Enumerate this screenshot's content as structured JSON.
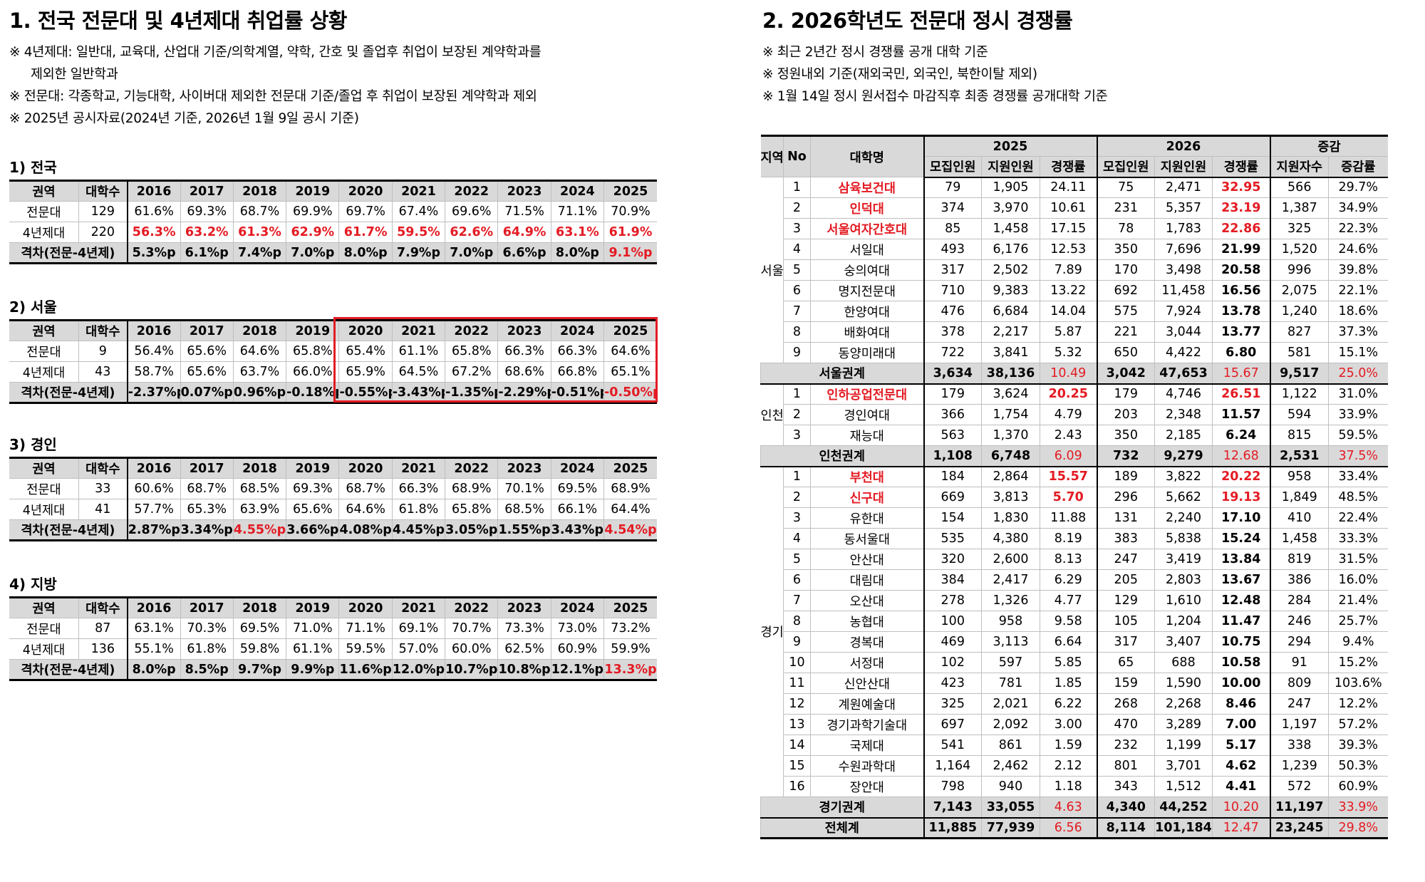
{
  "section1": {
    "title": "1. 전국 전문대 및 4년제대 취업률 상황",
    "notes": [
      "※ 4년제대: 일반대, 교육대, 산업대 기준/의학계열, 약학, 간호 및 졸업후 취업이 보장된 계약학과를",
      "제외한 일반학과",
      "※ 전문대: 각종학교, 기능대학, 사이버대 제외한 전문대 기준/졸업 후 취업이 보장된 계약학과 제외",
      "※ 2025년 공시자료(2024년 기준, 2026년 1월 9일 공시 기준)"
    ],
    "headers": [
      "권역",
      "대학수",
      "2016",
      "2017",
      "2018",
      "2019",
      "2020",
      "2021",
      "2022",
      "2023",
      "2024",
      "2025"
    ],
    "tables": [
      {
        "subtitle": "1) 전국",
        "rows": [
          {
            "label": "전문대",
            "count": "129",
            "values": [
              "61.6%",
              "69.3%",
              "68.7%",
              "69.9%",
              "69.7%",
              "67.4%",
              "69.6%",
              "71.5%",
              "71.1%",
              "70.9%"
            ]
          },
          {
            "label": "4년제대",
            "count": "220",
            "values": [
              "56.3%",
              "63.2%",
              "61.3%",
              "62.9%",
              "61.7%",
              "59.5%",
              "62.6%",
              "64.9%",
              "63.1%",
              "61.9%"
            ]
          }
        ],
        "gap": {
          "label": "격차(전문-4년제)",
          "values": [
            "5.3%p",
            "6.1%p",
            "7.4%p",
            "7.0%p",
            "8.0%p",
            "7.9%p",
            "7.0%p",
            "6.6%p",
            "8.0%p",
            "9.1%p"
          ]
        }
      },
      {
        "subtitle": "2) 서울",
        "rows": [
          {
            "label": "전문대",
            "count": "9",
            "values": [
              "56.4%",
              "65.6%",
              "64.6%",
              "65.8%",
              "65.4%",
              "61.1%",
              "65.8%",
              "66.3%",
              "66.3%",
              "64.6%"
            ]
          },
          {
            "label": "4년제대",
            "count": "43",
            "values": [
              "58.7%",
              "65.6%",
              "63.7%",
              "66.0%",
              "65.9%",
              "64.5%",
              "67.2%",
              "68.6%",
              "66.8%",
              "65.1%"
            ]
          }
        ],
        "gap": {
          "label": "격차(전문-4년제)",
          "values": [
            "-2.37%p",
            "0.07%p",
            "0.96%p",
            "-0.18%p",
            "-0.55%p",
            "-3.43%p",
            "-1.35%p",
            "-2.29%p",
            "-0.51%p",
            "-0.50%p"
          ]
        }
      },
      {
        "subtitle": "3) 경인",
        "rows": [
          {
            "label": "전문대",
            "count": "33",
            "values": [
              "60.6%",
              "68.7%",
              "68.5%",
              "69.3%",
              "68.7%",
              "66.3%",
              "68.9%",
              "70.1%",
              "69.5%",
              "68.9%"
            ]
          },
          {
            "label": "4년제대",
            "count": "41",
            "values": [
              "57.7%",
              "65.3%",
              "63.9%",
              "65.6%",
              "64.6%",
              "61.8%",
              "65.8%",
              "68.5%",
              "66.1%",
              "64.4%"
            ]
          }
        ],
        "gap": {
          "label": "격차(전문-4년제)",
          "values": [
            "2.87%p",
            "3.34%p",
            "4.55%p",
            "3.66%p",
            "4.08%p",
            "4.45%p",
            "3.05%p",
            "1.55%p",
            "3.43%p",
            "4.54%p"
          ]
        }
      },
      {
        "subtitle": "4) 지방",
        "rows": [
          {
            "label": "전문대",
            "count": "87",
            "values": [
              "63.1%",
              "70.3%",
              "69.5%",
              "71.0%",
              "71.1%",
              "69.1%",
              "70.7%",
              "73.3%",
              "73.0%",
              "73.2%"
            ]
          },
          {
            "label": "4년제대",
            "count": "136",
            "values": [
              "55.1%",
              "61.8%",
              "59.8%",
              "61.1%",
              "59.5%",
              "57.0%",
              "60.0%",
              "62.5%",
              "60.9%",
              "59.9%"
            ]
          }
        ],
        "gap": {
          "label": "격차(전문-4년제)",
          "values": [
            "8.0%p",
            "8.5%p",
            "9.7%p",
            "9.9%p",
            "11.6%p",
            "12.0%p",
            "10.7%p",
            "10.8%p",
            "12.1%p",
            "13.3%p"
          ]
        }
      }
    ]
  },
  "section2": {
    "title": "2. 2026학년도 전문대 정시 경쟁률",
    "notes": [
      "※ 최근 2년간 정시 경쟁률 공개 대학 기준",
      "※ 정원내외 기준(재외국민, 외국인, 북한이탈 제외)",
      "※ 1월 14일 정시 원서접수 마감직후 최종 경쟁률 공개대학 기준"
    ],
    "header": {
      "region": "지역",
      "no": "No",
      "name": "대학명",
      "y2025": "2025",
      "y2026": "2026",
      "change": "증감",
      "sub": [
        "모집인원",
        "지원인원",
        "경쟁률",
        "모집인원",
        "지원인원",
        "경쟁률",
        "지원자수",
        "증감률"
      ]
    },
    "regions": [
      {
        "name": "서울",
        "rows": [
          {
            "no": "1",
            "name": "삼육보건대",
            "v": [
              "79",
              "1,905",
              "24.11",
              "75",
              "2,471",
              "32.95",
              "566",
              "29.7%"
            ],
            "highlight": true
          },
          {
            "no": "2",
            "name": "인덕대",
            "v": [
              "374",
              "3,970",
              "10.61",
              "231",
              "5,357",
              "23.19",
              "1,387",
              "34.9%"
            ],
            "highlight": true
          },
          {
            "no": "3",
            "name": "서울여자간호대",
            "v": [
              "85",
              "1,458",
              "17.15",
              "78",
              "1,783",
              "22.86",
              "325",
              "22.3%"
            ],
            "highlight": true
          },
          {
            "no": "4",
            "name": "서일대",
            "v": [
              "493",
              "6,176",
              "12.53",
              "350",
              "7,696",
              "21.99",
              "1,520",
              "24.6%"
            ]
          },
          {
            "no": "5",
            "name": "숭의여대",
            "v": [
              "317",
              "2,502",
              "7.89",
              "170",
              "3,498",
              "20.58",
              "996",
              "39.8%"
            ]
          },
          {
            "no": "6",
            "name": "명지전문대",
            "v": [
              "710",
              "9,383",
              "13.22",
              "692",
              "11,458",
              "16.56",
              "2,075",
              "22.1%"
            ]
          },
          {
            "no": "7",
            "name": "한양여대",
            "v": [
              "476",
              "6,684",
              "14.04",
              "575",
              "7,924",
              "13.78",
              "1,240",
              "18.6%"
            ]
          },
          {
            "no": "8",
            "name": "배화여대",
            "v": [
              "378",
              "2,217",
              "5.87",
              "221",
              "3,044",
              "13.77",
              "827",
              "37.3%"
            ]
          },
          {
            "no": "9",
            "name": "동양미래대",
            "v": [
              "722",
              "3,841",
              "5.32",
              "650",
              "4,422",
              "6.80",
              "581",
              "15.1%"
            ]
          }
        ],
        "subtotal": {
          "label": "서울권계",
          "v": [
            "3,634",
            "38,136",
            "10.49",
            "3,042",
            "47,653",
            "15.67",
            "9,517",
            "25.0%"
          ]
        }
      },
      {
        "name": "인천",
        "rows": [
          {
            "no": "1",
            "name": "인하공업전문대",
            "v": [
              "179",
              "3,624",
              "20.25",
              "179",
              "4,746",
              "26.51",
              "1,122",
              "31.0%"
            ],
            "highlight": true,
            "highlight2025": true
          },
          {
            "no": "2",
            "name": "경인여대",
            "v": [
              "366",
              "1,754",
              "4.79",
              "203",
              "2,348",
              "11.57",
              "594",
              "33.9%"
            ]
          },
          {
            "no": "3",
            "name": "재능대",
            "v": [
              "563",
              "1,370",
              "2.43",
              "350",
              "2,185",
              "6.24",
              "815",
              "59.5%"
            ]
          }
        ],
        "subtotal": {
          "label": "인천권계",
          "v": [
            "1,108",
            "6,748",
            "6.09",
            "732",
            "9,279",
            "12.68",
            "2,531",
            "37.5%"
          ]
        }
      },
      {
        "name": "경기",
        "rows": [
          {
            "no": "1",
            "name": "부천대",
            "v": [
              "184",
              "2,864",
              "15.57",
              "189",
              "3,822",
              "20.22",
              "958",
              "33.4%"
            ],
            "highlight": true,
            "highlight2025": true
          },
          {
            "no": "2",
            "name": "신구대",
            "v": [
              "669",
              "3,813",
              "5.70",
              "296",
              "5,662",
              "19.13",
              "1,849",
              "48.5%"
            ],
            "highlight": true,
            "highlight2025": true
          },
          {
            "no": "3",
            "name": "유한대",
            "v": [
              "154",
              "1,830",
              "11.88",
              "131",
              "2,240",
              "17.10",
              "410",
              "22.4%"
            ]
          },
          {
            "no": "4",
            "name": "동서울대",
            "v": [
              "535",
              "4,380",
              "8.19",
              "383",
              "5,838",
              "15.24",
              "1,458",
              "33.3%"
            ]
          },
          {
            "no": "5",
            "name": "안산대",
            "v": [
              "320",
              "2,600",
              "8.13",
              "247",
              "3,419",
              "13.84",
              "819",
              "31.5%"
            ]
          },
          {
            "no": "6",
            "name": "대림대",
            "v": [
              "384",
              "2,417",
              "6.29",
              "205",
              "2,803",
              "13.67",
              "386",
              "16.0%"
            ]
          },
          {
            "no": "7",
            "name": "오산대",
            "v": [
              "278",
              "1,326",
              "4.77",
              "129",
              "1,610",
              "12.48",
              "284",
              "21.4%"
            ]
          },
          {
            "no": "8",
            "name": "농협대",
            "v": [
              "100",
              "958",
              "9.58",
              "105",
              "1,204",
              "11.47",
              "246",
              "25.7%"
            ]
          },
          {
            "no": "9",
            "name": "경복대",
            "v": [
              "469",
              "3,113",
              "6.64",
              "317",
              "3,407",
              "10.75",
              "294",
              "9.4%"
            ]
          },
          {
            "no": "10",
            "name": "서정대",
            "v": [
              "102",
              "597",
              "5.85",
              "65",
              "688",
              "10.58",
              "91",
              "15.2%"
            ]
          },
          {
            "no": "11",
            "name": "신안산대",
            "v": [
              "423",
              "781",
              "1.85",
              "159",
              "1,590",
              "10.00",
              "809",
              "103.6%"
            ]
          },
          {
            "no": "12",
            "name": "계원예술대",
            "v": [
              "325",
              "2,021",
              "6.22",
              "268",
              "2,268",
              "8.46",
              "247",
              "12.2%"
            ]
          },
          {
            "no": "13",
            "name": "경기과학기술대",
            "v": [
              "697",
              "2,092",
              "3.00",
              "470",
              "3,289",
              "7.00",
              "1,197",
              "57.2%"
            ]
          },
          {
            "no": "14",
            "name": "국제대",
            "v": [
              "541",
              "861",
              "1.59",
              "232",
              "1,199",
              "5.17",
              "338",
              "39.3%"
            ]
          },
          {
            "no": "15",
            "name": "수원과학대",
            "v": [
              "1,164",
              "2,462",
              "2.12",
              "801",
              "3,701",
              "4.62",
              "1,239",
              "50.3%"
            ]
          },
          {
            "no": "16",
            "name": "장안대",
            "v": [
              "798",
              "940",
              "1.18",
              "343",
              "1,512",
              "4.41",
              "572",
              "60.9%"
            ]
          }
        ],
        "subtotal": {
          "label": "경기권계",
          "v": [
            "7,143",
            "33,055",
            "4.63",
            "4,340",
            "44,252",
            "10.20",
            "11,197",
            "33.9%"
          ]
        }
      }
    ],
    "total": {
      "label": "전체계",
      "v": [
        "11,885",
        "77,939",
        "6.56",
        "8,114",
        "101,184",
        "12.47",
        "23,245",
        "29.8%"
      ]
    }
  },
  "colors": {
    "accent_red": "#e31b23",
    "header_gray": "#d9d9d9"
  }
}
